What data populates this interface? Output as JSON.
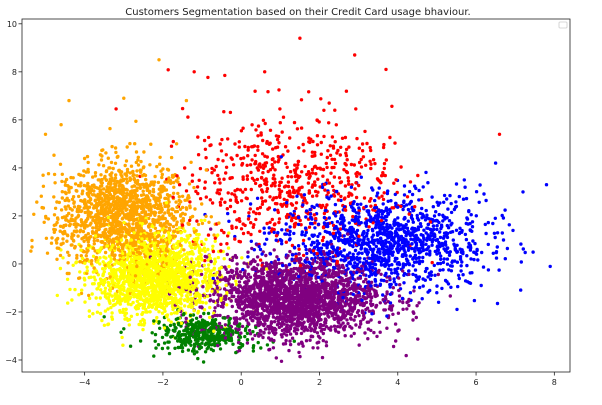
{
  "chart_data": {
    "type": "scatter",
    "title": "Customers Segmentation based on their Credit Card usage bhaviour.",
    "xlabel": "",
    "ylabel": "",
    "xlim": [
      -5.6,
      8.4
    ],
    "ylim": [
      -4.5,
      10.2
    ],
    "x_ticks": [
      -4,
      -2,
      0,
      2,
      4,
      6,
      8
    ],
    "y_ticks": [
      -4,
      -2,
      0,
      2,
      4,
      6,
      8,
      10
    ],
    "grid": false,
    "legend": "top-right (empty)",
    "clusters": [
      {
        "color": "#FFA500",
        "approx_points": 1500,
        "center": [
          -3.0,
          2.0
        ],
        "spread": [
          0.85,
          1.1
        ],
        "notable_points": [
          [
            -4.6,
            5.8
          ],
          [
            -4.4,
            6.8
          ],
          [
            -3.0,
            6.9
          ],
          [
            -1.4,
            6.8
          ],
          [
            -2.1,
            8.5
          ],
          [
            -5.0,
            5.4
          ],
          [
            -4.4,
            -0.4
          ]
        ]
      },
      {
        "color": "#FF0000",
        "approx_points": 650,
        "center": [
          1.2,
          3.3
        ],
        "spread": [
          1.3,
          1.5
        ],
        "notable_points": [
          [
            1.5,
            9.4
          ],
          [
            2.9,
            8.7
          ],
          [
            3.7,
            8.1
          ],
          [
            0.6,
            8.0
          ],
          [
            -1.2,
            8.0
          ],
          [
            6.6,
            5.4
          ],
          [
            3.5,
            3.5
          ]
        ]
      },
      {
        "color": "#0000FF",
        "approx_points": 1300,
        "center": [
          3.6,
          0.9
        ],
        "spread": [
          1.3,
          1.0
        ],
        "notable_points": [
          [
            7.8,
            3.3
          ],
          [
            7.2,
            3.0
          ],
          [
            6.5,
            4.2
          ],
          [
            2.6,
            -1.4
          ],
          [
            5.7,
            3.5
          ]
        ]
      },
      {
        "color": "#FFFF00",
        "approx_points": 1700,
        "center": [
          -2.2,
          -0.5
        ],
        "spread": [
          0.8,
          0.85
        ],
        "notable_points": [
          [
            -3.7,
            -0.3
          ],
          [
            -0.6,
            1.2
          ],
          [
            -0.7,
            -2.8
          ]
        ]
      },
      {
        "color": "#800080",
        "approx_points": 2200,
        "center": [
          1.4,
          -1.4
        ],
        "spread": [
          1.1,
          0.8
        ],
        "notable_points": [
          [
            -0.6,
            -3.4
          ],
          [
            3.8,
            -0.6
          ],
          [
            0.4,
            0.8
          ]
        ]
      },
      {
        "color": "#008000",
        "approx_points": 400,
        "center": [
          -1.0,
          -2.9
        ],
        "spread": [
          0.55,
          0.35
        ],
        "notable_points": [
          [
            -3.5,
            -2.2
          ],
          [
            -3.0,
            -2.7
          ],
          [
            -1.5,
            -3.5
          ],
          [
            0.5,
            -3.5
          ]
        ]
      }
    ]
  }
}
